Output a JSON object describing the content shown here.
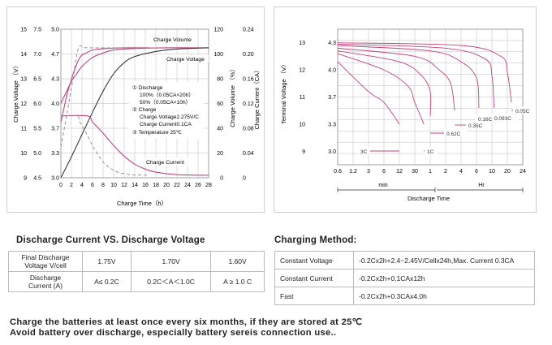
{
  "left_chart": {
    "x_ticks": [
      "0",
      "2",
      "4",
      "6",
      "8",
      "10",
      "12",
      "14",
      "16",
      "18",
      "20",
      "22",
      "24",
      "26",
      "28"
    ],
    "y_charge_voltage_12v": [
      "15",
      "14",
      "13",
      "12",
      "11",
      "10",
      "9"
    ],
    "y_charge_voltage_6v": [
      "5.0",
      "4.7",
      "4.3",
      "4.0",
      "3.7",
      "3.3",
      "3.0"
    ],
    "y_charge_voltage_4v": [
      "7.5",
      "7.0",
      "6.5",
      "6.0",
      "5.5",
      "5.0",
      "4.5"
    ],
    "y_charge_volume": [
      "120",
      "100",
      "80",
      "60",
      "40",
      "20",
      "0"
    ],
    "y_charge_current": [
      "0.24",
      "0.20",
      "0.16",
      "0.12",
      "0.08",
      "0.04",
      "0"
    ],
    "ylabel_left": "Charge Voltage （V）",
    "ylabel_right1": "Charge Volume （%）",
    "ylabel_right2": "Charge Current（CA）",
    "xlabel": "Charge Time（h）",
    "label_volume": "Charge Volume",
    "label_voltage": "Charge Voltage",
    "label_current": "Charge Current",
    "legend": [
      "①  Discharge",
      "100%（0.05CA×20h）",
      "50%（0.05CA×10h）",
      "②  Charge",
      "Charge Voltage2.275V/C",
      "Charge Current0.1CA",
      "③  Temperature 25℃"
    ]
  },
  "right_chart": {
    "y_terminal_12v": [
      "13",
      "12",
      "11",
      "10",
      "9"
    ],
    "y_terminal_6v": [
      "4.3",
      "4.0",
      "3.7",
      "3.3",
      "3.0"
    ],
    "ylabel": "Terminal Voltage （V）",
    "x_ticks": [
      "0.6",
      "1.2",
      "3",
      "6",
      "12",
      "30",
      "1",
      "2",
      "4",
      "6",
      "10",
      "20",
      "24"
    ],
    "x_min_label": "min",
    "x_hr_label": "Hr",
    "xlabel": "Discharge Time",
    "curve_labels": [
      "3C",
      "1C",
      "0.62C",
      "0.35C",
      "0.16C",
      "0.093C",
      "0.05C"
    ]
  },
  "chart_data": [
    {
      "type": "line",
      "xlabel": "Charge Time（h）",
      "ylabel": "Charge Voltage （V）",
      "xlim": [
        0,
        28
      ],
      "series": [
        {
          "name": "Charge Voltage",
          "x": [
            0,
            1,
            2,
            3,
            4,
            6,
            8,
            10,
            14,
            20,
            28
          ],
          "y": [
            4.0,
            4.15,
            4.3,
            4.4,
            4.5,
            4.62,
            4.68,
            4.72,
            4.74,
            4.75,
            4.75
          ]
        },
        {
          "name": "Charge Volume",
          "x": [
            0,
            2,
            4,
            6,
            8,
            10,
            12,
            14,
            18,
            22,
            28
          ],
          "y": [
            0,
            17,
            35,
            53,
            70,
            84,
            93,
            98,
            102,
            104,
            105
          ]
        },
        {
          "name": "Charge Current",
          "x": [
            0,
            5,
            6,
            8,
            10,
            12,
            14,
            16,
            18,
            22,
            28
          ],
          "y": [
            0.1,
            0.1,
            0.09,
            0.072,
            0.052,
            0.035,
            0.022,
            0.014,
            0.009,
            0.005,
            0.004
          ]
        }
      ]
    },
    {
      "type": "line",
      "xlabel": "Discharge Time",
      "ylabel": "Terminal Voltage （V）",
      "series": [
        {
          "name": "3C",
          "x_min": [
            0.6,
            3,
            6,
            12
          ],
          "y": [
            12.3,
            11.2,
            10.8,
            10.0
          ]
        },
        {
          "name": "1C",
          "x_min": [
            0.6,
            6,
            20,
            30,
            45
          ],
          "y": [
            12.6,
            12.0,
            11.4,
            10.8,
            10.0
          ]
        },
        {
          "name": "0.62C",
          "x_min": [
            0.6,
            12,
            40,
            60,
            80
          ],
          "y": [
            12.7,
            12.3,
            11.8,
            11.2,
            10.3
          ]
        },
        {
          "name": "0.35C",
          "x_hr": [
            0.01,
            0.5,
            1.5,
            2.5,
            3
          ],
          "y": [
            12.8,
            12.5,
            12.0,
            11.5,
            10.5
          ]
        },
        {
          "name": "0.16C",
          "x_hr": [
            0.01,
            1,
            4,
            6,
            6.5
          ],
          "y": [
            12.9,
            12.7,
            12.3,
            11.7,
            10.6
          ]
        },
        {
          "name": "0.093C",
          "x_hr": [
            0.01,
            2,
            8,
            10,
            11
          ],
          "y": [
            12.95,
            12.8,
            12.4,
            11.8,
            10.6
          ]
        },
        {
          "name": "0.05C",
          "x_hr": [
            0.01,
            4,
            15,
            20,
            21
          ],
          "y": [
            13.0,
            12.9,
            12.5,
            11.9,
            10.8
          ]
        }
      ]
    }
  ],
  "discharge_table": {
    "title": "Discharge Current VS. Discharge Voltage",
    "row1_header": [
      "Final Discharge",
      "Voltage V/cell"
    ],
    "row1_values": [
      "1.75V",
      "1.70V",
      "1.60V"
    ],
    "row2_header": [
      "Discharge",
      "Current (A)"
    ],
    "row2_values": [
      "A≤ 0.2C",
      "0.2C＜A＜1.0C",
      "A ≥ 1.0 C"
    ]
  },
  "charging_method": {
    "title": "Charging Method:",
    "rows": [
      {
        "method": "Constant Voltage",
        "value": "-0.2Cx2h+2.4~2.45V/Cellx24h,Max. Current 0.3CA"
      },
      {
        "method": "Constant Current",
        "value": "-0.2Cx2h+0.1CAx12h"
      },
      {
        "method": "Fast",
        "value": "-0.2Cx2h+0.3CAx4.0h"
      }
    ]
  },
  "notes": [
    "Charge the batteries at least once every six months,  if they are stored at 25℃",
    "Avoid battery over discharge, especially battery sereis connection use.."
  ],
  "colors": {
    "curve_pink": "#c0457e",
    "curve_dark": "#3a3a3a",
    "dash": "#8a8a8a",
    "grid": "#bdbdbd"
  }
}
